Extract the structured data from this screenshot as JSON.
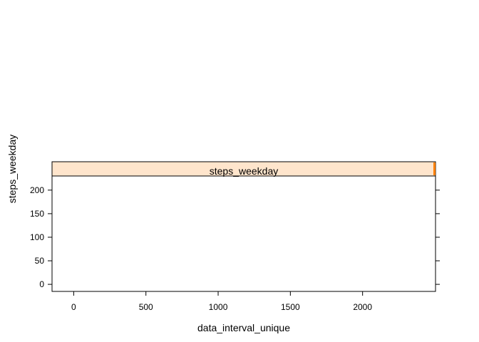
{
  "chart_data": {
    "type": "line",
    "title": "",
    "panel_title": "steps_weekday",
    "xlabel": "data_interval_unique",
    "ylabel": "steps_weekday",
    "xlim": [
      -150,
      2505
    ],
    "ylim": [
      -15,
      230
    ],
    "x_ticks": [
      0,
      500,
      1000,
      1500,
      2000
    ],
    "y_ticks": [
      0,
      50,
      100,
      150,
      200
    ],
    "grid": false,
    "strip_colors": {
      "fill": "#ffe5cc",
      "indicator": "#ff7f00"
    },
    "series": [
      {
        "x": [],
        "y": []
      }
    ]
  }
}
